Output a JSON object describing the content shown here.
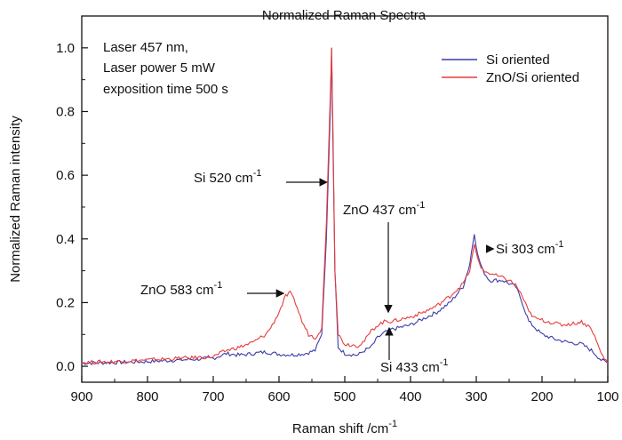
{
  "chart_data": {
    "type": "line",
    "title": "Normalized Raman Spectra",
    "xlabel": "Raman shift /cm",
    "xlabel_sup": "-1",
    "ylabel": "Normalized Raman intensity",
    "xlim": [
      900,
      100
    ],
    "ylim": [
      -0.05,
      1.1
    ],
    "x_ticks": [
      900,
      800,
      700,
      600,
      500,
      400,
      300,
      200,
      100
    ],
    "y_ticks": [
      0.0,
      0.2,
      0.4,
      0.6,
      0.8,
      1.0
    ],
    "x_tick_labels": [
      "900",
      "800",
      "700",
      "600",
      "500",
      "400",
      "300",
      "200",
      "100"
    ],
    "y_tick_labels": [
      "0.0",
      "0.2",
      "0.4",
      "0.6",
      "0.8",
      "1.0"
    ],
    "info_lines": [
      "Laser 457 nm,",
      "Laser power 5 mW",
      "exposition time 500 s"
    ],
    "legend": {
      "position": "top-right"
    },
    "series": [
      {
        "name": "Si oriented",
        "color": "#3c3ca8",
        "points": [
          [
            900,
            0.01
          ],
          [
            850,
            0.012
          ],
          [
            800,
            0.015
          ],
          [
            750,
            0.02
          ],
          [
            700,
            0.025
          ],
          [
            680,
            0.04
          ],
          [
            660,
            0.035
          ],
          [
            640,
            0.04
          ],
          [
            620,
            0.045
          ],
          [
            600,
            0.038
          ],
          [
            580,
            0.036
          ],
          [
            560,
            0.04
          ],
          [
            545,
            0.05
          ],
          [
            535,
            0.1
          ],
          [
            528,
            0.4
          ],
          [
            522,
            0.8
          ],
          [
            520,
            1.0
          ],
          [
            518,
            0.7
          ],
          [
            515,
            0.3
          ],
          [
            510,
            0.06
          ],
          [
            500,
            0.04
          ],
          [
            480,
            0.035
          ],
          [
            470,
            0.05
          ],
          [
            460,
            0.06
          ],
          [
            450,
            0.09
          ],
          [
            440,
            0.105
          ],
          [
            430,
            0.115
          ],
          [
            420,
            0.12
          ],
          [
            400,
            0.13
          ],
          [
            380,
            0.15
          ],
          [
            360,
            0.17
          ],
          [
            340,
            0.2
          ],
          [
            320,
            0.25
          ],
          [
            310,
            0.32
          ],
          [
            303,
            0.42
          ],
          [
            298,
            0.35
          ],
          [
            290,
            0.3
          ],
          [
            280,
            0.27
          ],
          [
            260,
            0.27
          ],
          [
            240,
            0.25
          ],
          [
            230,
            0.2
          ],
          [
            220,
            0.14
          ],
          [
            200,
            0.1
          ],
          [
            180,
            0.085
          ],
          [
            160,
            0.075
          ],
          [
            140,
            0.07
          ],
          [
            125,
            0.05
          ],
          [
            110,
            0.02
          ],
          [
            100,
            0.01
          ]
        ]
      },
      {
        "name": "ZnO/Si oriented",
        "color": "#e83c3c",
        "points": [
          [
            900,
            0.012
          ],
          [
            850,
            0.015
          ],
          [
            800,
            0.02
          ],
          [
            750,
            0.025
          ],
          [
            700,
            0.03
          ],
          [
            680,
            0.05
          ],
          [
            660,
            0.06
          ],
          [
            640,
            0.075
          ],
          [
            620,
            0.1
          ],
          [
            610,
            0.13
          ],
          [
            600,
            0.17
          ],
          [
            590,
            0.22
          ],
          [
            583,
            0.23
          ],
          [
            575,
            0.2
          ],
          [
            565,
            0.14
          ],
          [
            555,
            0.1
          ],
          [
            545,
            0.09
          ],
          [
            535,
            0.12
          ],
          [
            528,
            0.45
          ],
          [
            522,
            0.85
          ],
          [
            520,
            1.0
          ],
          [
            518,
            0.75
          ],
          [
            515,
            0.3
          ],
          [
            510,
            0.1
          ],
          [
            500,
            0.07
          ],
          [
            480,
            0.065
          ],
          [
            470,
            0.08
          ],
          [
            460,
            0.11
          ],
          [
            450,
            0.13
          ],
          [
            440,
            0.14
          ],
          [
            437,
            0.145
          ],
          [
            430,
            0.14
          ],
          [
            420,
            0.145
          ],
          [
            400,
            0.155
          ],
          [
            380,
            0.17
          ],
          [
            360,
            0.19
          ],
          [
            340,
            0.22
          ],
          [
            320,
            0.26
          ],
          [
            310,
            0.3
          ],
          [
            303,
            0.38
          ],
          [
            298,
            0.34
          ],
          [
            290,
            0.3
          ],
          [
            270,
            0.285
          ],
          [
            250,
            0.27
          ],
          [
            240,
            0.255
          ],
          [
            230,
            0.22
          ],
          [
            220,
            0.17
          ],
          [
            210,
            0.15
          ],
          [
            190,
            0.14
          ],
          [
            170,
            0.13
          ],
          [
            150,
            0.135
          ],
          [
            140,
            0.14
          ],
          [
            125,
            0.12
          ],
          [
            110,
            0.04
          ],
          [
            100,
            0.01
          ]
        ]
      }
    ],
    "annotations": [
      {
        "label": "Si 520 cm",
        "sup": "-1",
        "arrow_to": [
          522,
          0.58
        ]
      },
      {
        "label": "ZnO 437 cm",
        "sup": "-1",
        "arrow_to": [
          437,
          0.17
        ]
      },
      {
        "label": "ZnO 583 cm",
        "sup": "-1",
        "arrow_to": [
          585,
          0.235
        ]
      },
      {
        "label": "Si 303 cm",
        "sup": "-1",
        "arrow_to": [
          290,
          0.38
        ]
      },
      {
        "label": "Si 433 cm",
        "sup": "-1",
        "arrow_to": [
          433,
          0.12
        ]
      }
    ]
  }
}
